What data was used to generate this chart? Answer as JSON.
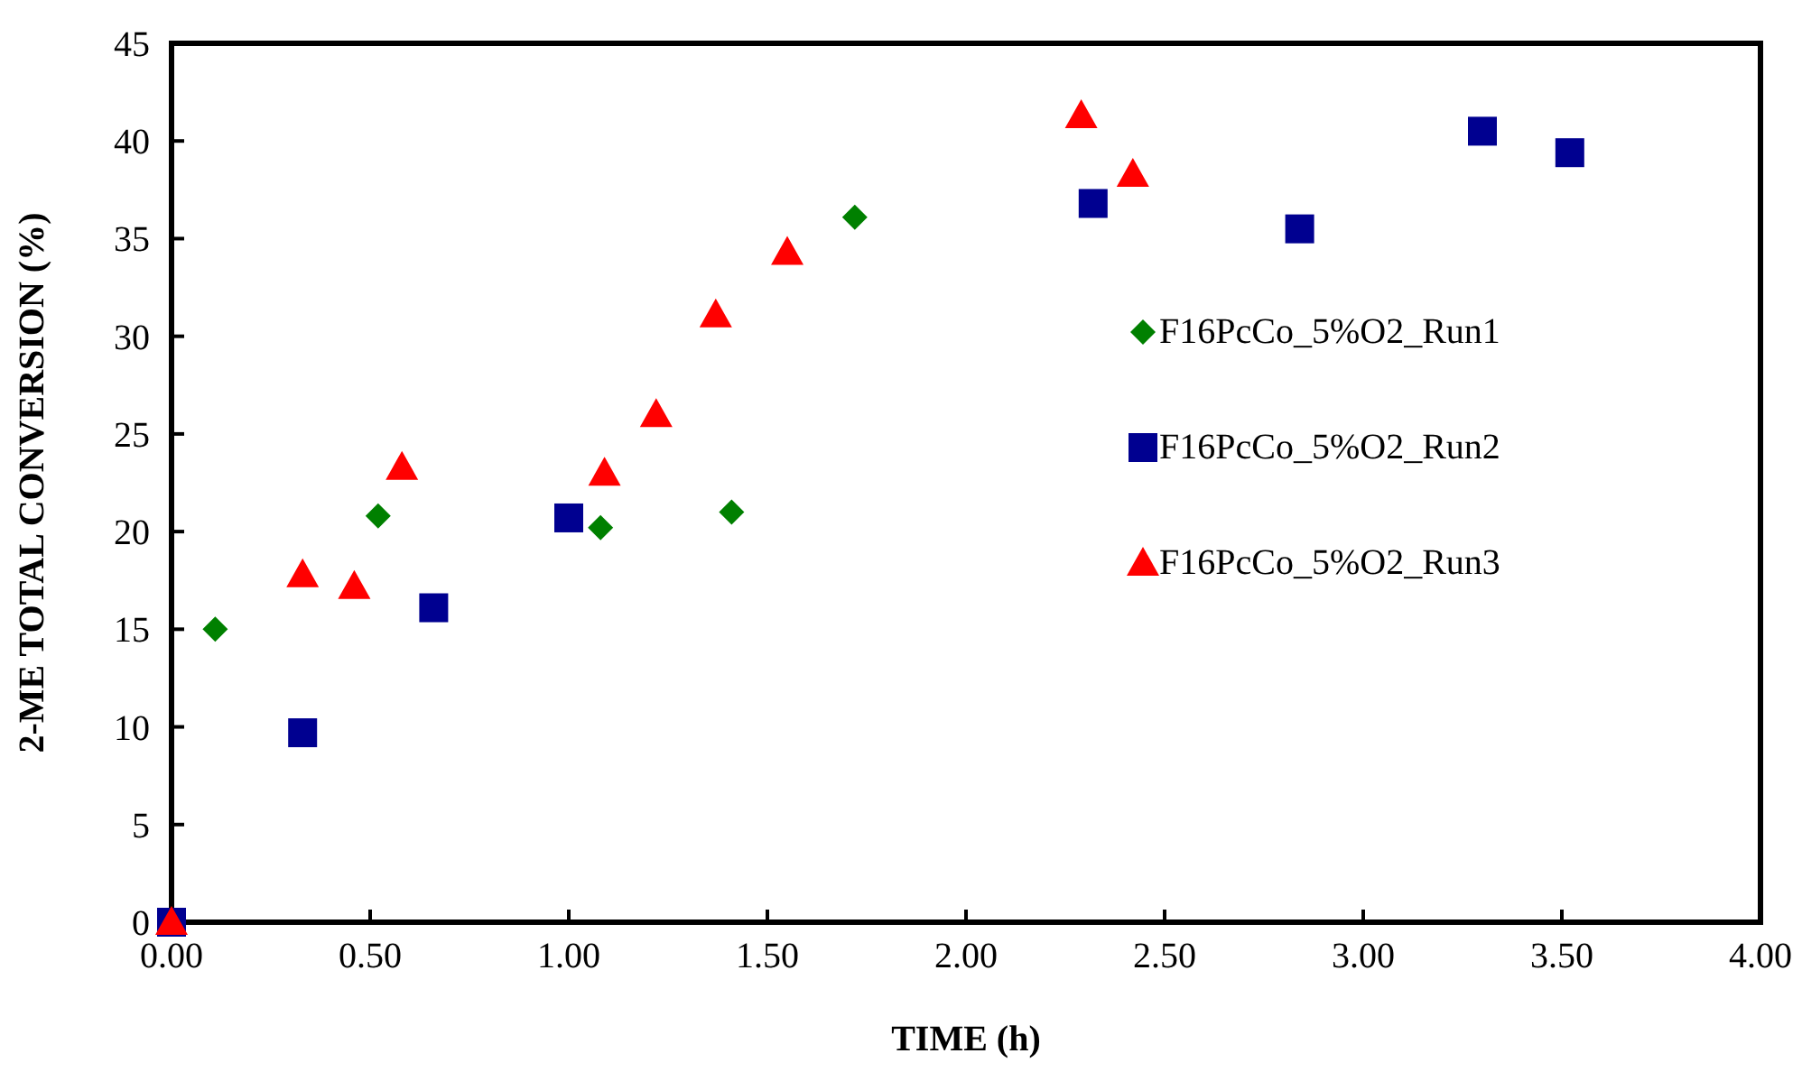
{
  "chart_data": {
    "type": "scatter",
    "xlabel": "TIME (h)",
    "ylabel": "2-ME TOTAL CONVERSION (%)",
    "xlim": [
      0,
      4
    ],
    "ylim": [
      0,
      45
    ],
    "xticks": [
      {
        "value": 0,
        "label": "0.00"
      },
      {
        "value": 0.5,
        "label": "0.50"
      },
      {
        "value": 1,
        "label": "1.00"
      },
      {
        "value": 1.5,
        "label": "1.50"
      },
      {
        "value": 2,
        "label": "2.00"
      },
      {
        "value": 2.5,
        "label": "2.50"
      },
      {
        "value": 3,
        "label": "3.00"
      },
      {
        "value": 3.5,
        "label": "3.50"
      },
      {
        "value": 4,
        "label": "4.00"
      }
    ],
    "yticks": [
      0,
      5,
      10,
      15,
      20,
      25,
      30,
      35,
      40,
      45
    ],
    "grid": false,
    "legend": "right",
    "series": [
      {
        "name": "F16PcCo_5%O2_Run1",
        "color": "#008000",
        "marker": "diamond",
        "x": [
          0.11,
          0.52,
          1.08,
          1.41,
          1.72
        ],
        "values": [
          15.0,
          20.8,
          20.2,
          21.0,
          36.1
        ]
      },
      {
        "name": "F16PcCo_5%O2_Run2",
        "color": "#000090",
        "marker": "square",
        "x": [
          0,
          0.33,
          0.66,
          1.0,
          2.32,
          2.84,
          3.3,
          3.52
        ],
        "values": [
          0,
          9.7,
          16.1,
          20.7,
          36.8,
          35.5,
          40.5,
          39.4
        ]
      },
      {
        "name": "F16PcCo_5%O2_Run3",
        "color": "#ff0000",
        "marker": "triangle",
        "x": [
          0,
          0.33,
          0.46,
          0.58,
          1.09,
          1.22,
          1.37,
          1.55,
          2.29,
          2.42
        ],
        "values": [
          0,
          17.8,
          17.2,
          23.3,
          23.0,
          26.0,
          31.1,
          34.3,
          41.3,
          38.3
        ]
      }
    ]
  }
}
